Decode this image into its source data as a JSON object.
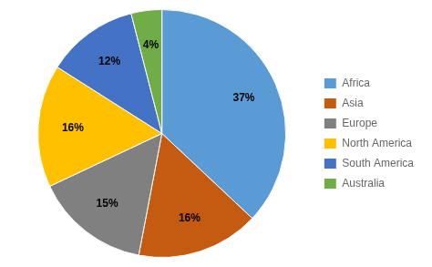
{
  "chart_data": {
    "type": "pie",
    "categories": [
      "Africa",
      "Asia",
      "Europe",
      "North America",
      "South America",
      "Australia"
    ],
    "values": [
      37,
      16,
      15,
      16,
      12,
      4
    ],
    "value_labels": [
      "37%",
      "16%",
      "15%",
      "16%",
      "12%",
      "4%"
    ],
    "colors": [
      "#5B9BD5",
      "#C55A11",
      "#808080",
      "#FFC000",
      "#4472C4",
      "#70AD47"
    ],
    "data_labels": true,
    "legend": "right"
  }
}
